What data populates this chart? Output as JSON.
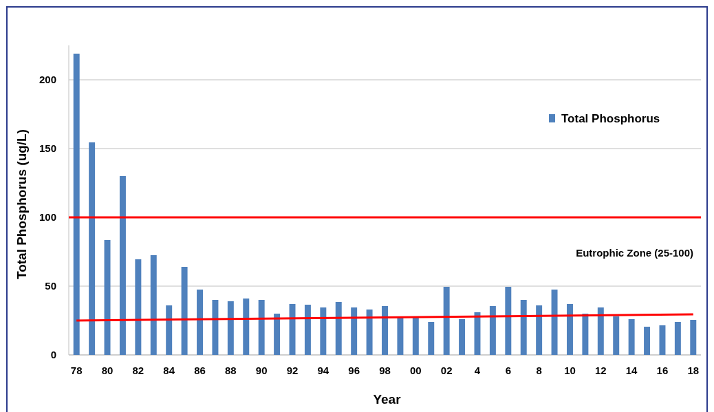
{
  "chart_data": {
    "type": "bar",
    "xlabel": "Year",
    "ylabel": "Total Phosphorus (ug/L)",
    "categories": [
      "78",
      null,
      "80",
      null,
      "82",
      null,
      "84",
      null,
      "86",
      null,
      "88",
      null,
      "90",
      null,
      "92",
      null,
      "94",
      null,
      "96",
      null,
      "98",
      null,
      "00",
      null,
      "02",
      null,
      "4",
      null,
      "6",
      null,
      "8",
      null,
      "10",
      null,
      "12",
      null,
      "14",
      null,
      "16",
      null,
      "18"
    ],
    "series": [
      {
        "name": "Total Phosphorus",
        "color": "#4f81bd",
        "values": [
          219,
          154.5,
          83.5,
          130,
          69.5,
          72.5,
          36,
          64,
          47.5,
          40,
          39,
          41,
          40,
          30,
          37,
          36.5,
          34.5,
          38.5,
          34.5,
          33,
          35.5,
          27,
          27,
          24,
          49.5,
          26,
          31,
          35.5,
          49.5,
          40,
          36,
          47.5,
          37,
          30,
          34.5,
          28,
          26,
          20.5,
          21.5,
          24,
          25.5
        ]
      },
      {
        "type": "line",
        "color": "#ff0000",
        "x": [
          "78",
          "18"
        ],
        "values": [
          25,
          29.5
        ]
      }
    ],
    "ylim": [
      0,
      225
    ],
    "yticks": [
      0,
      50,
      100,
      150,
      200
    ],
    "grid": "y",
    "legend": "top right",
    "ref_lines": [
      {
        "axis": "y",
        "value": 100,
        "color": "#ff0000"
      }
    ],
    "annotations": [
      "Eutrophic Zone (25-100)"
    ]
  }
}
